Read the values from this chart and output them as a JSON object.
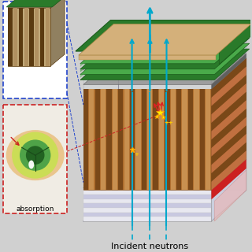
{
  "background_color": "#d8d8d8",
  "labels": {
    "incident_neutrons": "Incident neutrons",
    "absorption": "absorption"
  },
  "colors": {
    "bg": "#d0d0d0",
    "glass_front": "#dce8f0",
    "glass_side": "#c8d8e8",
    "glass_top": "#e0eaf4",
    "glass_edge": "#9090a0",
    "green_dark": "#2a7a2a",
    "green_mid": "#4aaa4a",
    "tan_pcb": "#d4b07a",
    "brown_dark": "#7a4818",
    "brown_mid": "#b07030",
    "brown_light": "#c89050",
    "gray_anode": "#909090",
    "gray_anode_dark": "#606060",
    "red_accent": "#cc2020",
    "pink_side": "#e8b8b8",
    "white_scint": "#f0f0f8",
    "stripe_light": "#e8e8f0",
    "stripe_dark": "#c8c8e0",
    "cyan": "#00a8cc",
    "red_line": "#cc2222",
    "blue_dash": "#2244cc",
    "inset_bg": "#c8dce8",
    "inset_orange": "#e8b870",
    "circ_yg": "#c8e050",
    "circ_green": "#48a048",
    "circ_dkgreen": "#206020",
    "small_bg": "#c0a878",
    "small_dark": "#5a3a10"
  },
  "font_size_label": 8,
  "font_size_small": 6.5
}
